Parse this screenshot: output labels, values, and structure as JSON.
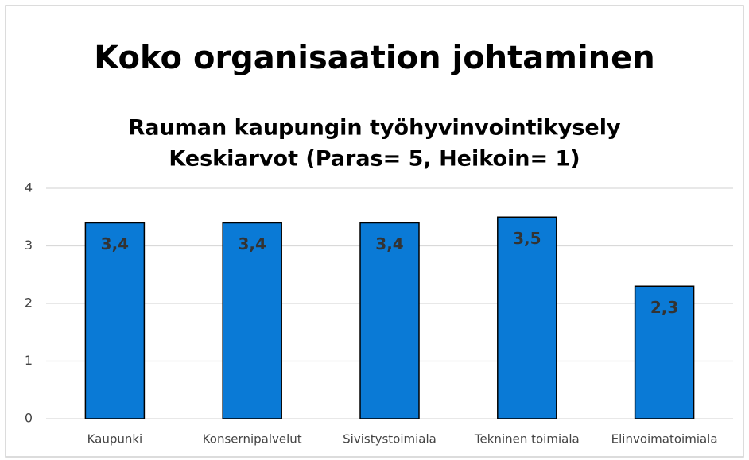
{
  "chart_data": {
    "type": "bar",
    "title": "Koko organisaation johtaminen",
    "subtitle": [
      "Rauman kaupungin työhyvinvointikysely",
      "Keskiarvot (Paras= 5, Heikoin= 1)"
    ],
    "categories": [
      "Kaupunki",
      "Konsernipalvelut",
      "Sivistystoimiala",
      "Tekninen toimiala",
      "Elinvoimatoimiala"
    ],
    "values": [
      3.4,
      3.4,
      3.4,
      3.5,
      2.3
    ],
    "value_labels": [
      "3,4",
      "3,4",
      "3,4",
      "3,5",
      "2,3"
    ],
    "color": "#0a7ad6",
    "ylim": [
      0,
      4
    ],
    "yticks": [
      0,
      1,
      2,
      3,
      4
    ],
    "grid": true
  }
}
